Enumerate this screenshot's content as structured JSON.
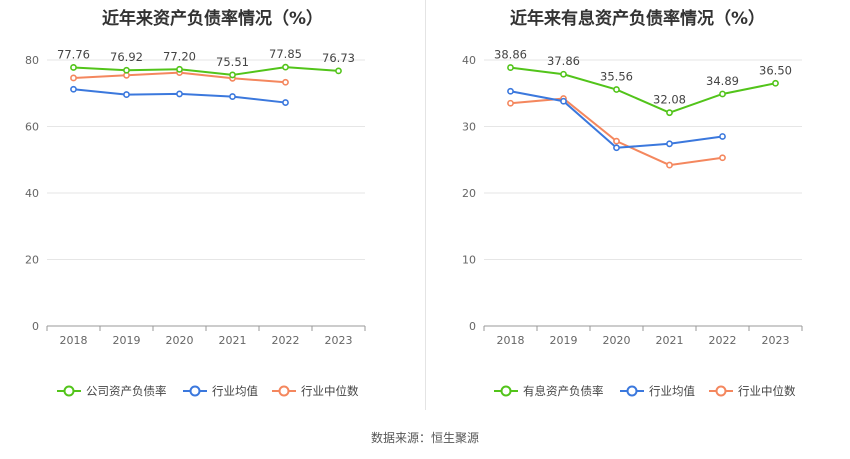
{
  "footer": {
    "source_label": "数据来源：恒生聚源"
  },
  "chart_data": [
    {
      "type": "line",
      "title": "近年来资产负债率情况（%）",
      "categories": [
        "2018",
        "2019",
        "2020",
        "2021",
        "2022",
        "2023"
      ],
      "ylim": [
        0,
        90
      ],
      "yticks": [
        0,
        20,
        40,
        60,
        80
      ],
      "grid": true,
      "legend_position": "bottom",
      "series": [
        {
          "name": "公司资产负债率",
          "color": "#52c41a",
          "values": [
            77.76,
            76.92,
            77.2,
            75.51,
            77.85,
            76.73
          ],
          "labels": [
            "77.76",
            "76.92",
            "77.20",
            "75.51",
            "77.85",
            "76.73"
          ]
        },
        {
          "name": "行业均值",
          "color": "#3b78dd",
          "values": [
            71.2,
            69.6,
            69.8,
            69.0,
            67.2,
            null
          ]
        },
        {
          "name": "行业中位数",
          "color": "#f4875e",
          "values": [
            74.6,
            75.4,
            76.2,
            74.5,
            73.3,
            null
          ]
        }
      ]
    },
    {
      "type": "line",
      "title": "近年来有息资产负债率情况（%）",
      "categories": [
        "2018",
        "2019",
        "2020",
        "2021",
        "2022",
        "2023"
      ],
      "ylim": [
        0,
        40
      ],
      "yticks": [
        0,
        10,
        20,
        30,
        40
      ],
      "grid": true,
      "legend_position": "bottom",
      "series": [
        {
          "name": "有息资产负债率",
          "color": "#52c41a",
          "values": [
            38.86,
            37.86,
            35.56,
            32.08,
            34.89,
            36.5
          ],
          "labels": [
            "38.86",
            "37.86",
            "35.56",
            "32.08",
            "34.89",
            "36.50"
          ]
        },
        {
          "name": "行业均值",
          "color": "#3b78dd",
          "values": [
            35.3,
            33.8,
            26.8,
            27.4,
            28.5,
            null
          ]
        },
        {
          "name": "行业中位数",
          "color": "#f4875e",
          "values": [
            33.5,
            34.2,
            27.8,
            24.2,
            25.3,
            null
          ]
        }
      ]
    }
  ]
}
